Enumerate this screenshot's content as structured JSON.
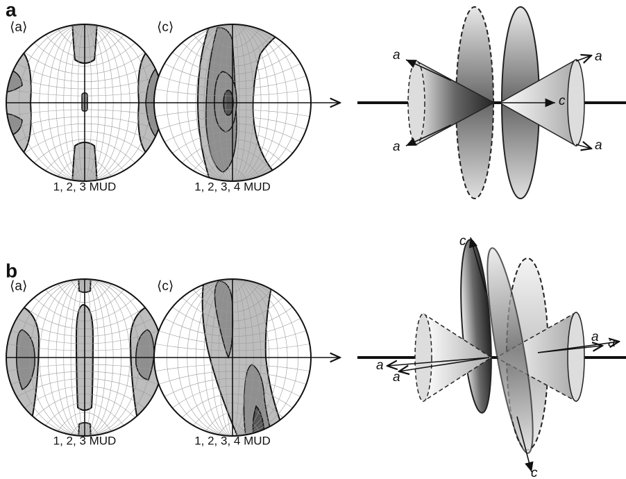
{
  "panels": [
    {
      "label": "a",
      "pole_figures": [
        {
          "title": "⟨a⟩",
          "caption": "1, 2, 3 MUD"
        },
        {
          "title": "⟨c⟩",
          "caption": "1, 2, 3, 4 MUD"
        }
      ],
      "axis_labels": [
        "a",
        "a",
        "a",
        "a",
        "c"
      ]
    },
    {
      "label": "b",
      "pole_figures": [
        {
          "title": "⟨a⟩",
          "caption": "1, 2, 3 MUD"
        },
        {
          "title": "⟨c⟩",
          "caption": "1, 2, 3, 4 MUD"
        }
      ],
      "axis_labels": [
        "c",
        "c",
        "a",
        "a",
        "a",
        "a"
      ]
    }
  ]
}
